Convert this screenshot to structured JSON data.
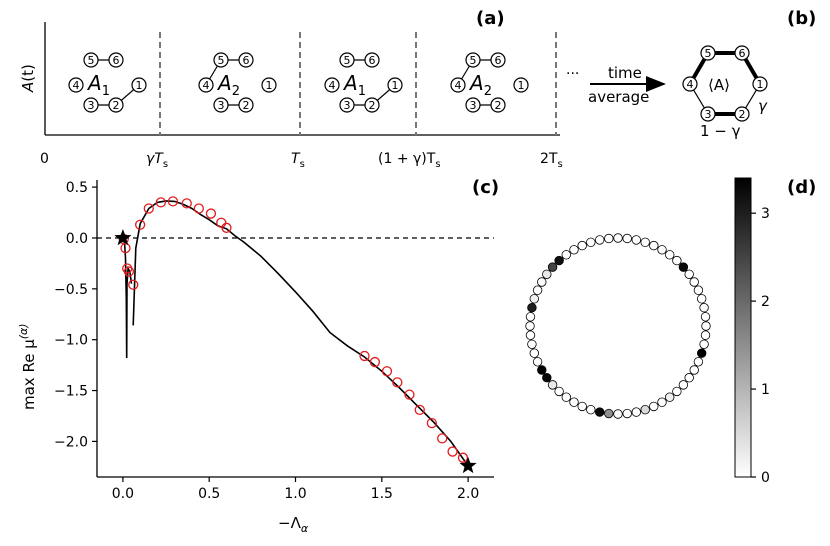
{
  "panel_labels": {
    "a": "(a)",
    "b": "(b)",
    "c": "(c)",
    "d": "(d)"
  },
  "panel_a": {
    "ylabel_main": "A",
    "ylabel_arg": "(t)",
    "x_ticks": [
      "0",
      "γT",
      "T",
      "(1 + γ)T",
      "2T"
    ],
    "tick_subscript": "s",
    "snapshot_labels": [
      "A",
      "A",
      "A",
      "A"
    ],
    "snapshot_subscripts": [
      "1",
      "2",
      "1",
      "2"
    ],
    "node_numbers": [
      "1",
      "2",
      "3",
      "4",
      "5",
      "6"
    ],
    "ellipsis": "···",
    "arrow_label_top": "time",
    "arrow_label_bottom": "average"
  },
  "panel_b": {
    "center_label": "⟨A⟩",
    "edge_label_1": "γ",
    "edge_label_2": "1 − γ",
    "node_numbers": [
      "1",
      "2",
      "3",
      "4",
      "5",
      "6"
    ]
  },
  "chart_data": [
    {
      "type": "line",
      "panel": "c",
      "title": "",
      "xlabel": "−Λ",
      "xlabel_subscript": "α",
      "ylabel": "max Re μ",
      "ylabel_superscript": "(α)",
      "xlim": [
        -0.15,
        2.15
      ],
      "ylim": [
        -2.35,
        0.57
      ],
      "x_ticks": [
        0.0,
        0.5,
        1.0,
        1.5,
        2.0
      ],
      "x_tick_labels": [
        "0.0",
        "0.5",
        "1.0",
        "1.5",
        "2.0"
      ],
      "y_ticks": [
        0.5,
        0.0,
        -0.5,
        -1.0,
        -1.5,
        -2.0
      ],
      "y_tick_labels": [
        "0.5",
        "0.0",
        "−0.5",
        "−1.0",
        "−1.5",
        "−2.0"
      ],
      "reference_line_y": 0.0,
      "series": [
        {
          "name": "continuous branch",
          "style": "black solid line",
          "x": [
            0.06,
            0.075,
            0.1,
            0.15,
            0.2,
            0.25,
            0.3,
            0.35,
            0.4,
            0.45,
            0.5,
            0.55,
            0.6,
            0.65,
            0.7,
            0.8,
            0.9,
            1.0,
            1.1,
            1.2,
            1.3,
            1.4,
            1.5,
            1.6,
            1.7,
            1.8,
            1.9,
            2.0
          ],
          "y": [
            -0.86,
            -0.1,
            0.14,
            0.29,
            0.35,
            0.365,
            0.36,
            0.33,
            0.29,
            0.23,
            0.18,
            0.12,
            0.09,
            0.02,
            -0.04,
            -0.18,
            -0.35,
            -0.53,
            -0.72,
            -0.93,
            -1.06,
            -1.17,
            -1.31,
            -1.47,
            -1.64,
            -1.81,
            -2.0,
            -2.24
          ]
        },
        {
          "name": "small-Λ branch",
          "style": "black solid line",
          "x": [
            0.0,
            0.01,
            0.015,
            0.02,
            0.022,
            0.024,
            0.03,
            0.04,
            0.05
          ],
          "y": [
            0.0,
            -0.05,
            -0.2,
            -0.6,
            -1.18,
            -0.45,
            -0.3,
            -0.33,
            -0.45
          ]
        },
        {
          "name": "sampled modes",
          "style": "red open circles",
          "x": [
            0.005,
            0.015,
            0.025,
            0.035,
            0.06,
            0.1,
            0.15,
            0.22,
            0.29,
            0.37,
            0.44,
            0.51,
            0.57,
            0.6,
            1.4,
            1.46,
            1.53,
            1.59,
            1.66,
            1.72,
            1.79,
            1.85,
            1.91,
            1.97
          ],
          "y": [
            -0.01,
            -0.1,
            -0.3,
            -0.33,
            -0.46,
            0.13,
            0.29,
            0.35,
            0.36,
            0.34,
            0.29,
            0.24,
            0.15,
            0.1,
            -1.16,
            -1.22,
            -1.31,
            -1.42,
            -1.54,
            -1.69,
            -1.82,
            -1.97,
            -2.1,
            -2.16
          ]
        },
        {
          "name": "endpoints",
          "style": "black stars",
          "x": [
            0.0,
            2.0
          ],
          "y": [
            0.0,
            -2.24
          ]
        }
      ]
    },
    {
      "type": "heatmap",
      "panel": "d",
      "title": "",
      "colorbar_ticks": [
        0,
        1,
        2,
        3
      ],
      "colorbar_range": [
        0,
        3.4
      ],
      "ring_node_count": 60,
      "ring_values": [
        0,
        0,
        0,
        0,
        0,
        0,
        0,
        0,
        3.3,
        0,
        0,
        0,
        0,
        0.1,
        0,
        0,
        0,
        0,
        3.4,
        0,
        0,
        0,
        0,
        0,
        0.2,
        0,
        0,
        0.5,
        0,
        0,
        0,
        1.5,
        3.3,
        0,
        0,
        0,
        0,
        0,
        0.3,
        3.3,
        3.4,
        0,
        0,
        0,
        0,
        0,
        0,
        3.0,
        0.2,
        0,
        0,
        0.3,
        2.5,
        3.2,
        0,
        0,
        0,
        0,
        0,
        0
      ]
    }
  ]
}
